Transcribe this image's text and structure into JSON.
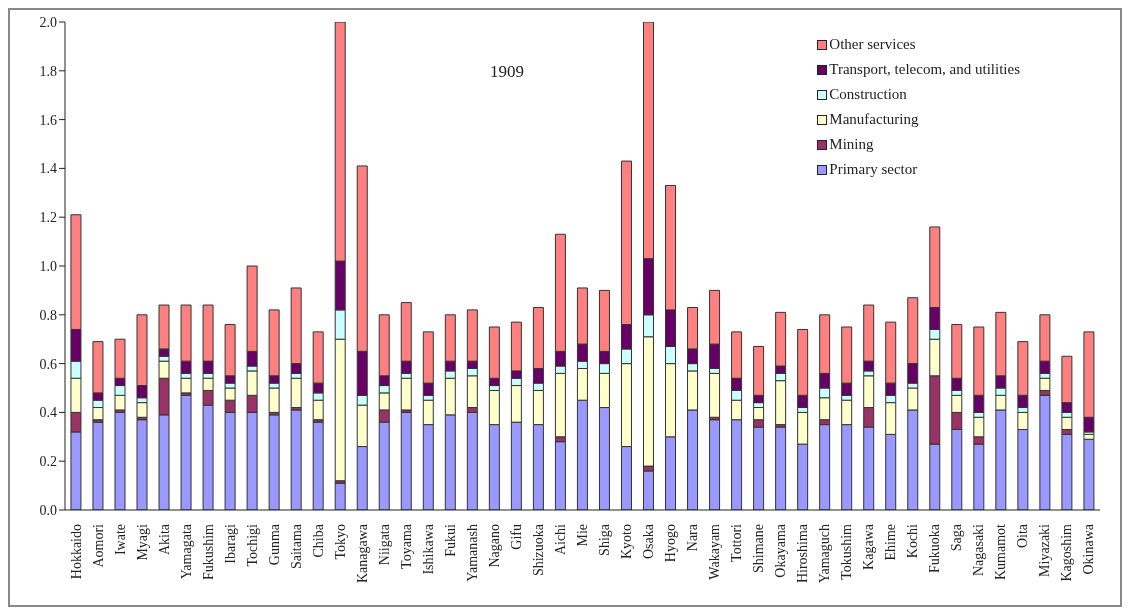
{
  "chart_data": {
    "type": "bar",
    "title": "1909",
    "stacked": true,
    "legend": "top right",
    "categories": [
      "Hokkaido",
      "Aomori",
      "Iwate",
      "Myagi",
      "Akita",
      "Yamagata",
      "Fukushim",
      "Ibaragi",
      "Tochigi",
      "Gunma",
      "Saitama",
      "Chiba",
      "Tokyo",
      "Kanagawa",
      "Niigata",
      "Toyama",
      "Ishikawa",
      "Fukui",
      "Yamanash",
      "Nagano",
      "Gifu",
      "Shizuoka",
      "Aichi",
      "Mie",
      "Shiga",
      "Kyoto",
      "Osaka",
      "Hyogo",
      "Nara",
      "Wakayam",
      "Tottori",
      "Shimane",
      "Okayama",
      "Hiroshima",
      "Yamaguch",
      "Tokushim",
      "Kagawa",
      "Ehime",
      "Kochi",
      "Fukuoka",
      "Saga",
      "Nagasaki",
      "Kumamot",
      "Oita",
      "Miyazaki",
      "Kagoshim",
      "Okinawa"
    ],
    "ylim": [
      0,
      2
    ],
    "yticks": [
      {
        "value": 0,
        "label": "0.0"
      },
      {
        "value": 0.2,
        "label": "0.2"
      },
      {
        "value": 0.4,
        "label": "0.4"
      },
      {
        "value": 0.6,
        "label": "0.6"
      },
      {
        "value": 0.8,
        "label": "0.8"
      },
      {
        "value": 1,
        "label": "1.0"
      },
      {
        "value": 1.2,
        "label": "1.2"
      },
      {
        "value": 1.4,
        "label": "1.4"
      },
      {
        "value": 1.6,
        "label": "1.6"
      },
      {
        "value": 1.8,
        "label": "1.8"
      },
      {
        "value": 2,
        "label": "2.0"
      }
    ],
    "series": [
      {
        "name": "Primary sector",
        "color": "#9999ff",
        "values": [
          0.32,
          0.36,
          0.4,
          0.37,
          0.39,
          0.47,
          0.43,
          0.4,
          0.4,
          0.39,
          0.41,
          0.36,
          0.11,
          0.26,
          0.36,
          0.4,
          0.35,
          0.39,
          0.4,
          0.35,
          0.36,
          0.35,
          0.28,
          0.45,
          0.42,
          0.26,
          0.16,
          0.3,
          0.41,
          0.37,
          0.37,
          0.34,
          0.34,
          0.27,
          0.35,
          0.35,
          0.34,
          0.31,
          0.41,
          0.27,
          0.33,
          0.27,
          0.41,
          0.33,
          0.47,
          0.31,
          0.29
        ]
      },
      {
        "name": "Mining",
        "color": "#993366",
        "values": [
          0.08,
          0.01,
          0.01,
          0.01,
          0.15,
          0.01,
          0.06,
          0.05,
          0.07,
          0.01,
          0.01,
          0.01,
          0.01,
          0,
          0.05,
          0.01,
          0,
          0,
          0.02,
          0,
          0,
          0,
          0.02,
          0,
          0,
          0,
          0.02,
          0,
          0,
          0.01,
          0,
          0.03,
          0.01,
          0,
          0.02,
          0,
          0.08,
          0,
          0,
          0.28,
          0.07,
          0.03,
          0,
          0,
          0.02,
          0.02,
          0
        ]
      },
      {
        "name": "Manufacturing",
        "color": "#ffffcc",
        "values": [
          0.14,
          0.05,
          0.06,
          0.06,
          0.07,
          0.06,
          0.05,
          0.05,
          0.1,
          0.1,
          0.12,
          0.08,
          0.58,
          0.17,
          0.07,
          0.13,
          0.1,
          0.15,
          0.13,
          0.14,
          0.15,
          0.14,
          0.26,
          0.13,
          0.14,
          0.34,
          0.53,
          0.3,
          0.16,
          0.18,
          0.08,
          0.05,
          0.18,
          0.13,
          0.09,
          0.1,
          0.13,
          0.13,
          0.09,
          0.15,
          0.07,
          0.08,
          0.06,
          0.07,
          0.05,
          0.05,
          0.02
        ]
      },
      {
        "name": "Construction",
        "color": "#ccffff",
        "values": [
          0.07,
          0.03,
          0.04,
          0.02,
          0.02,
          0.02,
          0.02,
          0.02,
          0.02,
          0.02,
          0.02,
          0.03,
          0.12,
          0.04,
          0.03,
          0.02,
          0.02,
          0.03,
          0.03,
          0.02,
          0.03,
          0.03,
          0.03,
          0.03,
          0.04,
          0.06,
          0.09,
          0.07,
          0.03,
          0.02,
          0.04,
          0.02,
          0.03,
          0.02,
          0.04,
          0.02,
          0.02,
          0.03,
          0.02,
          0.04,
          0.02,
          0.02,
          0.03,
          0.02,
          0.02,
          0.02,
          0.01
        ]
      },
      {
        "name": "Transport, telecom, and utilities",
        "color": "#660066",
        "values": [
          0.13,
          0.03,
          0.03,
          0.05,
          0.03,
          0.05,
          0.05,
          0.03,
          0.06,
          0.03,
          0.04,
          0.04,
          0.2,
          0.18,
          0.04,
          0.05,
          0.05,
          0.04,
          0.03,
          0.03,
          0.03,
          0.06,
          0.06,
          0.07,
          0.05,
          0.1,
          0.23,
          0.15,
          0.06,
          0.1,
          0.05,
          0.03,
          0.03,
          0.05,
          0.06,
          0.05,
          0.04,
          0.05,
          0.08,
          0.09,
          0.05,
          0.07,
          0.05,
          0.05,
          0.05,
          0.04,
          0.06
        ]
      },
      {
        "name": "Other services",
        "color": "#ff8080",
        "values": [
          0.47,
          0.21,
          0.16,
          0.29,
          0.18,
          0.23,
          0.23,
          0.21,
          0.35,
          0.27,
          0.31,
          0.21,
          0.98,
          0.76,
          0.25,
          0.24,
          0.21,
          0.19,
          0.21,
          0.21,
          0.2,
          0.25,
          0.48,
          0.23,
          0.25,
          0.67,
          0.97,
          0.51,
          0.17,
          0.22,
          0.19,
          0.2,
          0.22,
          0.27,
          0.24,
          0.23,
          0.23,
          0.25,
          0.27,
          0.33,
          0.22,
          0.28,
          0.26,
          0.22,
          0.19,
          0.19,
          0.35
        ]
      }
    ]
  }
}
